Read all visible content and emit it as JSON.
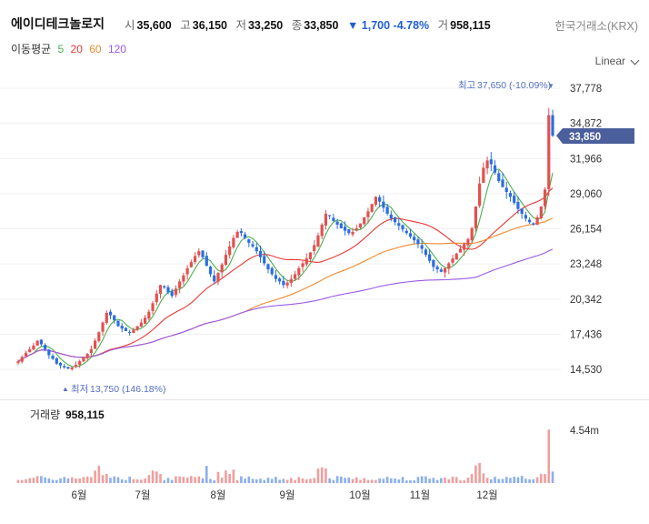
{
  "header": {
    "name": "에이디테크놀로지",
    "open_label": "시",
    "open": "35,600",
    "high_label": "고",
    "high": "36,150",
    "low_label": "저",
    "low": "33,250",
    "close_label": "종",
    "close": "33,850",
    "change": "▼ 1,700 -4.78%",
    "volume_label": "거",
    "volume": "958,115",
    "exchange": "한국거래소(KRX)"
  },
  "ma_legend": {
    "title": "이동평균",
    "periods": [
      "5",
      "20",
      "60",
      "120"
    ],
    "colors": [
      "#4caf50",
      "#e53935",
      "#ef8a2f",
      "#9b59e6"
    ]
  },
  "scale_mode": "Linear",
  "colors": {
    "up": "#e2514f",
    "down": "#2b6de0",
    "price_tag": "#4a5f9c",
    "annotation": "#5470c6"
  },
  "chart_data": {
    "type": "candlestick",
    "title": "",
    "price_axis_ticks": [
      "37,778",
      "34,872",
      "31,966",
      "29,060",
      "26,154",
      "23,248",
      "20,342",
      "17,436",
      "14,530"
    ],
    "price_axis_values": [
      37778,
      34872,
      31966,
      29060,
      26154,
      23248,
      20342,
      17436,
      14530
    ],
    "x_ticks": [
      "6월",
      "7월",
      "8월",
      "9월",
      "10월",
      "11월",
      "12월"
    ],
    "current_price_label": "33,850",
    "current_price": 33850,
    "max_annotation": {
      "prefix": "최고",
      "text": "37,650 (-10.09%)",
      "value": 37650
    },
    "min_annotation": {
      "prefix": "최저",
      "text": "13,750 (146.18%)",
      "value": 13750
    },
    "volume_label": "거래량",
    "volume_value": "958,115",
    "volume_axis_tick": "4.54m",
    "volume_axis_value": 4540000,
    "close_series": [
      15200,
      15550,
      15900,
      16200,
      16500,
      16900,
      16600,
      16200,
      15700,
      15400,
      15000,
      14850,
      14700,
      14600,
      14700,
      14900,
      15200,
      15500,
      15800,
      16200,
      16900,
      17600,
      18400,
      19200,
      19000,
      18600,
      18100,
      17900,
      17700,
      17600,
      17800,
      18100,
      18400,
      18800,
      19300,
      20000,
      20800,
      21500,
      21300,
      20900,
      20600,
      21200,
      21800,
      22300,
      22900,
      23400,
      23900,
      24300,
      23800,
      23100,
      22400,
      21800,
      22500,
      23200,
      24000,
      24700,
      25400,
      25900,
      25800,
      25400,
      25000,
      24700,
      24300,
      23800,
      23300,
      22800,
      22400,
      22000,
      21800,
      21500,
      21700,
      22000,
      22400,
      22900,
      23300,
      23700,
      24200,
      24800,
      25600,
      26500,
      27400,
      27200,
      26800,
      26500,
      26200,
      26000,
      25800,
      25900,
      26200,
      26600,
      27100,
      27600,
      28200,
      28800,
      28400,
      27900,
      27400,
      27000,
      26700,
      26400,
      26100,
      25800,
      25500,
      25200,
      24900,
      24500,
      24000,
      23500,
      23000,
      22800,
      22600,
      22900,
      23300,
      23700,
      24100,
      24500,
      24900,
      25300,
      26200,
      28000,
      29900,
      31200,
      31800,
      31500,
      30800,
      30100,
      29600,
      29200,
      28800,
      28300,
      27800,
      27400,
      27000,
      26700,
      26500,
      27100,
      28000,
      29400,
      35550,
      33850
    ],
    "close_series_start": "2023-05-22",
    "series": [
      {
        "name": "5",
        "color": "#4caf50"
      },
      {
        "name": "20",
        "color": "#e53935"
      },
      {
        "name": "60",
        "color": "#ef8a2f"
      },
      {
        "name": "120",
        "color": "#9b59e6"
      }
    ]
  }
}
